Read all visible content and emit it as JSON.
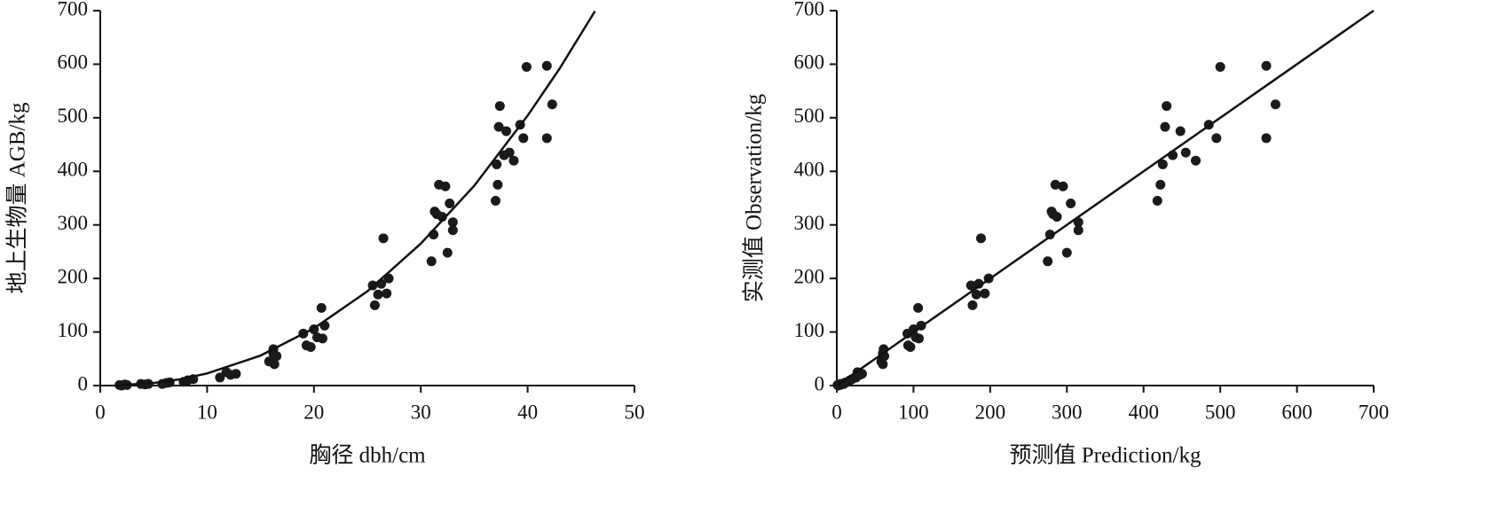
{
  "chart_data": [
    {
      "type": "scatter",
      "x_label": "胸径 dbh/cm",
      "y_label": "地上生物量 AGB/kg",
      "xlim": [
        0,
        50
      ],
      "ylim": [
        0,
        700
      ],
      "xticks": [
        0,
        10,
        20,
        30,
        40,
        50
      ],
      "yticks": [
        0,
        100,
        200,
        300,
        400,
        500,
        600,
        700
      ],
      "series": [
        {
          "type": "scatter",
          "color": "#1a1a1a",
          "x": [
            1.8,
            2,
            2.3,
            2.5,
            3.8,
            4.2,
            4.5,
            5.8,
            6.2,
            6.5,
            7.8,
            8.2,
            8.7,
            11.2,
            11.8,
            12.2,
            12.7,
            15.8,
            16.2,
            16.3,
            16.5,
            16.2,
            19,
            19.3,
            19.7,
            20,
            20.3,
            20.7,
            20.8,
            21,
            25.5,
            25.7,
            26,
            26.3,
            26.5,
            26.8,
            27,
            31,
            31.2,
            31.3,
            31.5,
            31.7,
            32,
            32.3,
            32.5,
            32.7,
            33,
            33,
            37,
            37.2,
            37.1,
            37.3,
            37.4,
            37.8,
            38,
            38.3,
            38.7,
            39.3,
            39.6,
            39.9,
            41.8,
            41.8,
            42.3
          ],
          "values": [
            1,
            0,
            2,
            1,
            3,
            2,
            3,
            3,
            5,
            6,
            7,
            10,
            12,
            15,
            25,
            20,
            22,
            45,
            60,
            40,
            55,
            68,
            97,
            75,
            72,
            105,
            90,
            145,
            88,
            112,
            187,
            150,
            170,
            190,
            275,
            172,
            200,
            232,
            282,
            325,
            320,
            375,
            315,
            372,
            248,
            340,
            290,
            305,
            345,
            375,
            413,
            483,
            522,
            430,
            475,
            435,
            420,
            487,
            462,
            595,
            597,
            462,
            525
          ]
        },
        {
          "type": "line",
          "color": "#111111",
          "x": [
            1.5,
            5,
            7.5,
            10,
            15,
            20,
            25,
            30,
            35,
            40,
            43,
            46.3
          ],
          "values": [
            0.32,
            4.8,
            11.9,
            22.6,
            56,
            107,
            176,
            265,
            373,
            504,
            592,
            699
          ]
        }
      ]
    },
    {
      "type": "scatter",
      "x_label": "预测值 Prediction/kg",
      "y_label": "实测值 Observation/kg",
      "xlim": [
        0,
        700
      ],
      "ylim": [
        0,
        700
      ],
      "xticks": [
        0,
        100,
        200,
        300,
        400,
        500,
        600,
        700
      ],
      "yticks": [
        0,
        100,
        200,
        300,
        400,
        500,
        600,
        700
      ],
      "series": [
        {
          "type": "scatter",
          "color": "#1a1a1a",
          "x": [
            1,
            2,
            3,
            4,
            5,
            6,
            8,
            9,
            10,
            12,
            15,
            17,
            20,
            25,
            27,
            30,
            33,
            58,
            60,
            60,
            62,
            61,
            92,
            93,
            96,
            100,
            103,
            106,
            107,
            110,
            175,
            177,
            182,
            185,
            188,
            193,
            198,
            275,
            278,
            280,
            282,
            285,
            287,
            295,
            300,
            305,
            315,
            315,
            418,
            422,
            425,
            428,
            430,
            438,
            448,
            455,
            468,
            485,
            495,
            500,
            560,
            560,
            572
          ],
          "values": [
            1,
            0,
            2,
            1,
            3,
            2,
            3,
            3,
            5,
            6,
            7,
            10,
            12,
            15,
            25,
            20,
            22,
            45,
            60,
            40,
            55,
            68,
            97,
            75,
            72,
            105,
            90,
            145,
            88,
            112,
            187,
            150,
            170,
            190,
            275,
            172,
            200,
            232,
            282,
            325,
            320,
            375,
            315,
            372,
            248,
            340,
            290,
            305,
            345,
            375,
            413,
            483,
            522,
            430,
            475,
            435,
            420,
            487,
            462,
            595,
            597,
            462,
            525
          ]
        },
        {
          "type": "line",
          "color": "#111111",
          "x": [
            0,
            700
          ],
          "values": [
            0,
            700
          ]
        }
      ]
    }
  ]
}
